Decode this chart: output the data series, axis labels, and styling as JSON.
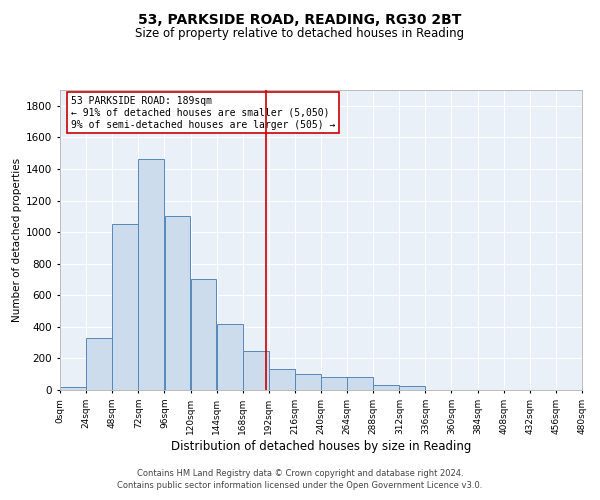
{
  "title_line1": "53, PARKSIDE ROAD, READING, RG30 2BT",
  "title_line2": "Size of property relative to detached houses in Reading",
  "xlabel": "Distribution of detached houses by size in Reading",
  "ylabel": "Number of detached properties",
  "bar_color": "#ccdcec",
  "bar_edge_color": "#5588bb",
  "background_color": "#eaf0f8",
  "grid_color": "#ffffff",
  "annotation_text": "53 PARKSIDE ROAD: 189sqm\n← 91% of detached houses are smaller (5,050)\n9% of semi-detached houses are larger (505) →",
  "property_line_x": 189,
  "property_line_color": "#cc0000",
  "footer_line1": "Contains HM Land Registry data © Crown copyright and database right 2024.",
  "footer_line2": "Contains public sector information licensed under the Open Government Licence v3.0.",
  "bin_edges": [
    0,
    24,
    48,
    72,
    96,
    120,
    144,
    168,
    192,
    216,
    240,
    264,
    288,
    312,
    336,
    360,
    384,
    408,
    432,
    456,
    480
  ],
  "bar_heights": [
    20,
    330,
    1050,
    1460,
    1100,
    700,
    420,
    250,
    130,
    100,
    80,
    80,
    30,
    25,
    0,
    0,
    0,
    0,
    0,
    0
  ],
  "ylim": [
    0,
    1900
  ],
  "xlim": [
    0,
    480
  ],
  "yticks": [
    0,
    200,
    400,
    600,
    800,
    1000,
    1200,
    1400,
    1600,
    1800
  ],
  "xtick_labels": [
    "0sqm",
    "24sqm",
    "48sqm",
    "72sqm",
    "96sqm",
    "120sqm",
    "144sqm",
    "168sqm",
    "192sqm",
    "216sqm",
    "240sqm",
    "264sqm",
    "288sqm",
    "312sqm",
    "336sqm",
    "360sqm",
    "384sqm",
    "408sqm",
    "432sqm",
    "456sqm",
    "480sqm"
  ],
  "title1_fontsize": 10,
  "title2_fontsize": 8.5,
  "ylabel_fontsize": 7.5,
  "xlabel_fontsize": 8.5,
  "ytick_fontsize": 7.5,
  "xtick_fontsize": 6.5,
  "annot_fontsize": 7.0,
  "footer_fontsize": 6.0
}
